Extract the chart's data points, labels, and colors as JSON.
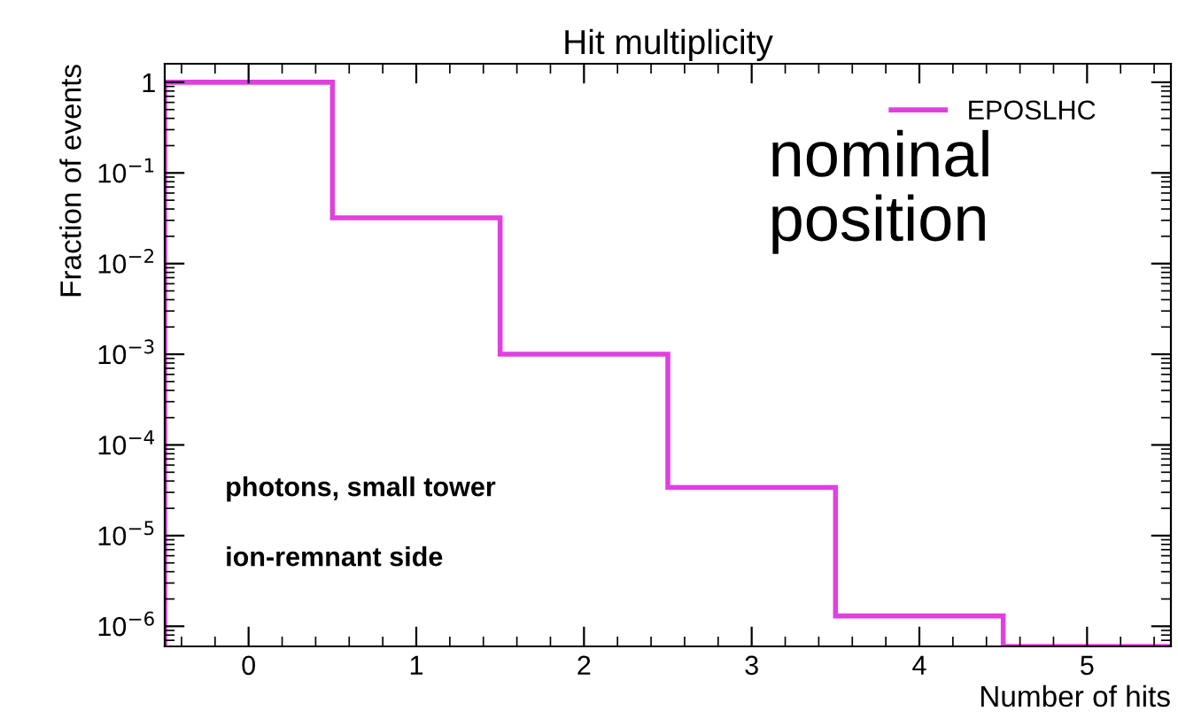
{
  "chart_data": {
    "type": "histogram",
    "title": "Hit multiplicity",
    "xlabel": "Number of hits",
    "ylabel": "Fraction of events",
    "bins": [
      -0.5,
      0.5,
      1.5,
      2.5,
      3.5,
      4.5,
      5.5
    ],
    "series": [
      {
        "name": "EPOSLHC",
        "color": "#e040e0",
        "values": [
          1.0,
          0.032,
          0.001,
          3.4e-05,
          1.3e-06,
          6e-07
        ]
      }
    ],
    "log": "y",
    "xlim": [
      -0.5,
      5.5
    ],
    "ylim": [
      6e-07,
      1.6
    ],
    "xticks": [
      0,
      1,
      2,
      3,
      4,
      5
    ],
    "yticks": [
      {
        "value": 1,
        "label": "1"
      },
      {
        "value": 0.1,
        "label": "10$^{−1}$"
      },
      {
        "value": 0.01,
        "label": "10$^{−2}$"
      },
      {
        "value": 0.001,
        "label": "10$^{−3}$"
      },
      {
        "value": 0.0001,
        "label": "10$^{−4}$"
      },
      {
        "value": 1e-05,
        "label": "10$^{−5}$"
      },
      {
        "value": 1e-06,
        "label": "10$^{−6}$"
      }
    ],
    "grid": false,
    "legend": "top right",
    "annotations": [
      "photons, small tower",
      "ion-remnant side",
      "nominal\nposition"
    ]
  }
}
